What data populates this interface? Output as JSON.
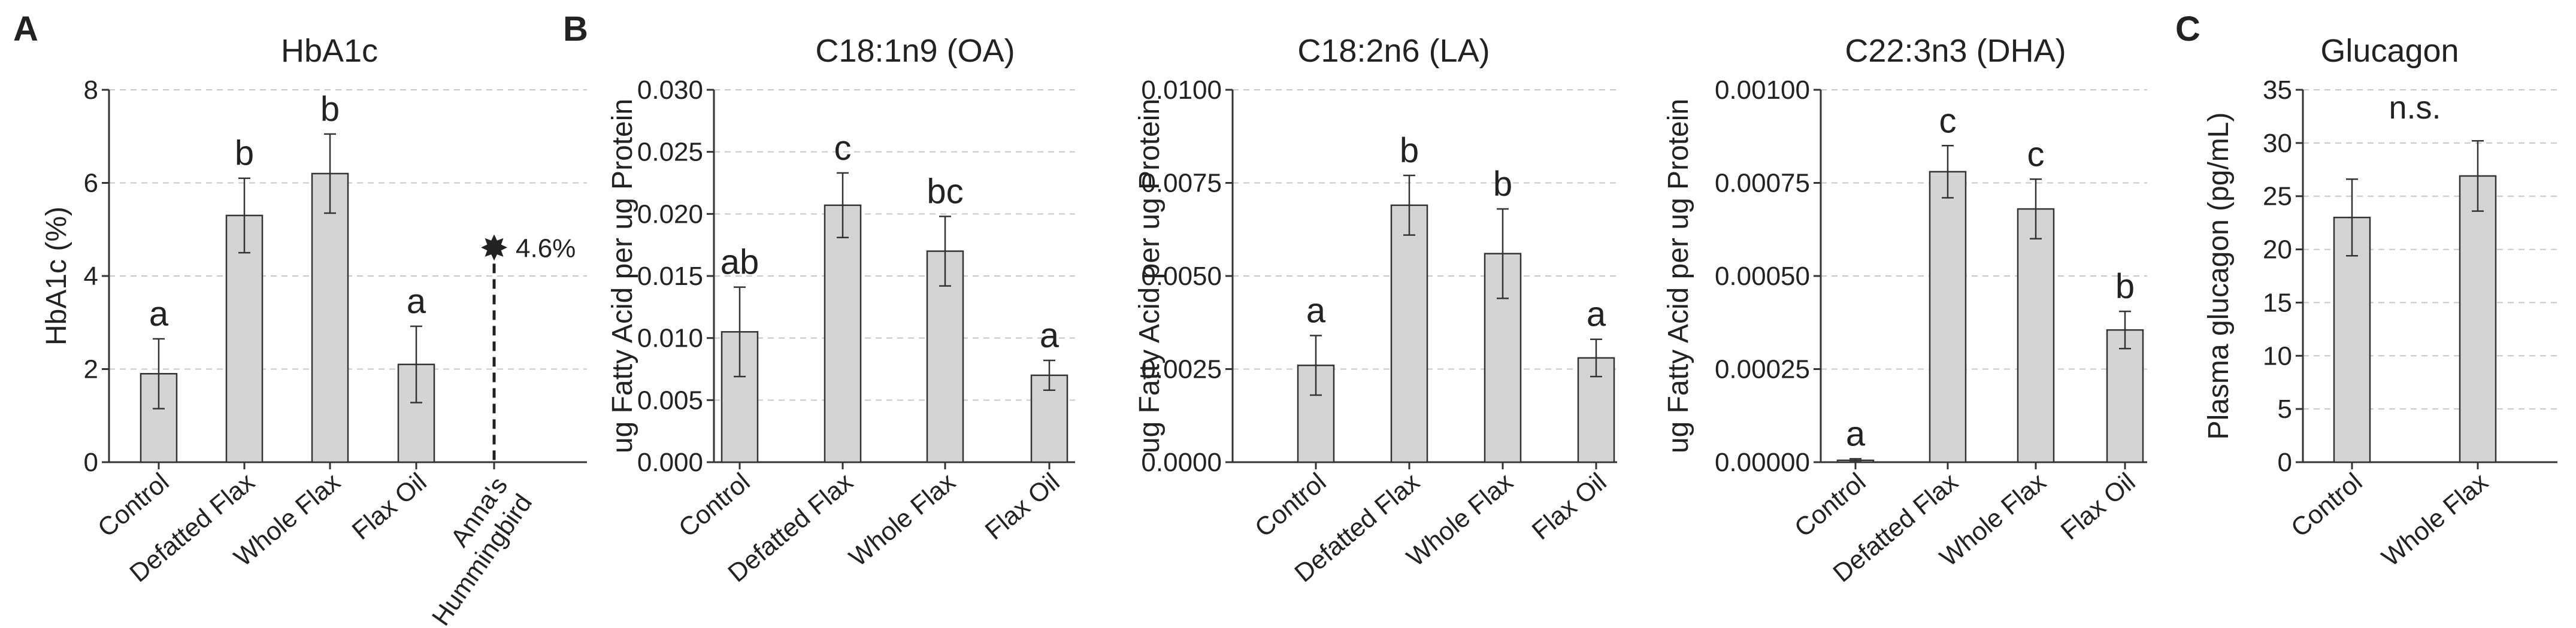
{
  "figure": {
    "panel_letters": [
      "A",
      "B",
      "C"
    ]
  },
  "chart_data": [
    {
      "id": "hba1c",
      "panel": "A",
      "type": "bar",
      "title": "HbA1c",
      "xlabel": "",
      "ylabel": "HbA1c (%)",
      "ylim": [
        0,
        8
      ],
      "yticks": [
        "0",
        "2",
        "4",
        "6",
        "8"
      ],
      "ytick_values": [
        0,
        2,
        4,
        6,
        8
      ],
      "grid": true,
      "categories": [
        "Control",
        "Defatted Flax",
        "Whole Flax",
        "Flax Oil"
      ],
      "values": [
        1.9,
        5.3,
        6.2,
        2.1
      ],
      "errors": [
        0.75,
        0.8,
        0.85,
        0.82
      ],
      "letters": [
        "a",
        "b",
        "b",
        "a"
      ],
      "reference": {
        "category_lines": [
          "Anna's",
          "Hummingbird"
        ],
        "value": 4.6,
        "label": "4.6%"
      },
      "colors": {
        "bar": "#d4d4d4",
        "edge": "#333333",
        "grid": "#c8c8c8"
      }
    },
    {
      "id": "oa",
      "panel": "B",
      "type": "bar",
      "title": "C18:1n9 (OA)",
      "xlabel": "",
      "ylabel": "ug Fatty Acid per ug Protein",
      "ylim": [
        0,
        0.03
      ],
      "yticks": [
        "0.000",
        "0.005",
        "0.010",
        "0.015",
        "0.020",
        "0.025",
        "0.030"
      ],
      "ytick_values": [
        0,
        0.005,
        0.01,
        0.015,
        0.02,
        0.025,
        0.03
      ],
      "grid": true,
      "categories": [
        "Control",
        "Defatted Flax",
        "Whole Flax",
        "Flax Oil"
      ],
      "values": [
        0.0105,
        0.0207,
        0.017,
        0.007
      ],
      "errors": [
        0.0036,
        0.0026,
        0.0028,
        0.0012
      ],
      "letters": [
        "ab",
        "c",
        "bc",
        "a"
      ],
      "colors": {
        "bar": "#d4d4d4",
        "edge": "#333333",
        "grid": "#c8c8c8"
      }
    },
    {
      "id": "la",
      "panel": "",
      "type": "bar",
      "title": "C18:2n6 (LA)",
      "xlabel": "",
      "ylabel": "ug Fatty Acid per ug Protein",
      "ylim": [
        0,
        0.01
      ],
      "yticks": [
        "0.0000",
        "0.0025",
        "0.0050",
        "0.0075",
        "0.0100"
      ],
      "ytick_values": [
        0,
        0.0025,
        0.005,
        0.0075,
        0.01
      ],
      "grid": true,
      "categories": [
        "Control",
        "Defatted Flax",
        "Whole Flax",
        "Flax Oil"
      ],
      "values": [
        0.0026,
        0.0069,
        0.0056,
        0.0028
      ],
      "errors": [
        0.0008,
        0.0008,
        0.0012,
        0.0005
      ],
      "letters": [
        "a",
        "b",
        "b",
        "a"
      ],
      "colors": {
        "bar": "#d4d4d4",
        "edge": "#333333",
        "grid": "#c8c8c8"
      }
    },
    {
      "id": "dha",
      "panel": "",
      "type": "bar",
      "title": "C22:3n3 (DHA)",
      "xlabel": "",
      "ylabel": "ug Fatty Acid per ug Protein",
      "ylim": [
        0,
        0.001
      ],
      "yticks": [
        "0.00000",
        "0.00025",
        "0.00050",
        "0.00075",
        "0.00100"
      ],
      "ytick_values": [
        0,
        0.00025,
        0.0005,
        0.00075,
        0.001
      ],
      "grid": true,
      "categories": [
        "Control",
        "Defatted Flax",
        "Whole Flax",
        "Flax Oil"
      ],
      "values": [
        5e-06,
        0.00078,
        0.00068,
        0.000355
      ],
      "errors": [
        4e-06,
        7e-05,
        8e-05,
        5e-05
      ],
      "letters": [
        "a",
        "c",
        "c",
        "b"
      ],
      "colors": {
        "bar": "#d4d4d4",
        "edge": "#333333",
        "grid": "#c8c8c8"
      }
    },
    {
      "id": "glucagon",
      "panel": "C",
      "type": "bar",
      "title": "Glucagon",
      "xlabel": "",
      "ylabel": "Plasma glucagon (pg/mL)",
      "ylim": [
        0,
        35
      ],
      "yticks": [
        "0",
        "5",
        "10",
        "15",
        "20",
        "25",
        "30",
        "35"
      ],
      "ytick_values": [
        0,
        5,
        10,
        15,
        20,
        25,
        30,
        35
      ],
      "grid": true,
      "categories": [
        "Control",
        "Whole Flax"
      ],
      "values": [
        23,
        26.9
      ],
      "errors": [
        3.6,
        3.3
      ],
      "letters": [],
      "annotation": "n.s.",
      "colors": {
        "bar": "#d4d4d4",
        "edge": "#333333",
        "grid": "#c8c8c8"
      }
    }
  ]
}
